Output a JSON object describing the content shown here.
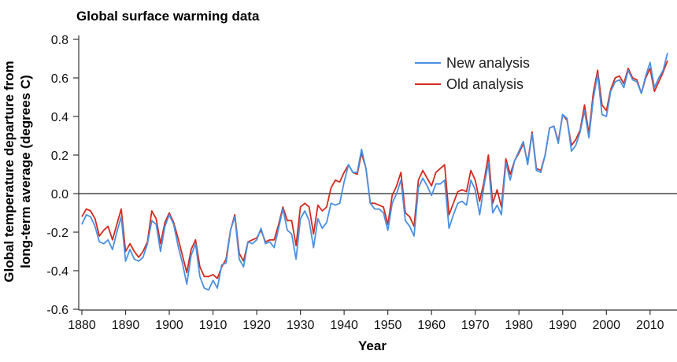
{
  "chart_data": {
    "type": "line",
    "title": "Global surface warming data",
    "xlabel": "Year",
    "ylabel": [
      "Global temperature departure from",
      "long-term average  (degrees C)"
    ],
    "xlim": [
      1880,
      2014
    ],
    "ylim": [
      -0.6,
      0.8
    ],
    "xticks": [
      1880,
      1890,
      1900,
      1910,
      1920,
      1930,
      1940,
      1950,
      1960,
      1970,
      1980,
      1990,
      2000,
      2010
    ],
    "yticks": [
      "0.8",
      "0.6",
      "0.4",
      "0.2",
      "0.0",
      "-0.2",
      "-0.4",
      "-0.6"
    ],
    "grid": false,
    "zero_line": true,
    "legend_position": "top-right",
    "x_start": 1880,
    "series": [
      {
        "name": "New analysis",
        "color": "#4a90e2",
        "values": [
          -0.16,
          -0.11,
          -0.12,
          -0.17,
          -0.25,
          -0.26,
          -0.24,
          -0.29,
          -0.2,
          -0.12,
          -0.35,
          -0.29,
          -0.34,
          -0.35,
          -0.33,
          -0.26,
          -0.14,
          -0.16,
          -0.3,
          -0.17,
          -0.11,
          -0.16,
          -0.27,
          -0.36,
          -0.47,
          -0.32,
          -0.26,
          -0.43,
          -0.49,
          -0.5,
          -0.45,
          -0.49,
          -0.37,
          -0.36,
          -0.19,
          -0.12,
          -0.34,
          -0.38,
          -0.25,
          -0.26,
          -0.24,
          -0.18,
          -0.26,
          -0.25,
          -0.28,
          -0.18,
          -0.08,
          -0.19,
          -0.21,
          -0.34,
          -0.13,
          -0.09,
          -0.14,
          -0.28,
          -0.13,
          -0.18,
          -0.15,
          -0.05,
          -0.06,
          -0.05,
          0.06,
          0.15,
          0.11,
          0.11,
          0.23,
          0.13,
          -0.05,
          -0.08,
          -0.08,
          -0.1,
          -0.19,
          -0.05,
          0.0,
          0.07,
          -0.14,
          -0.17,
          -0.22,
          0.03,
          0.08,
          0.04,
          -0.01,
          0.05,
          0.05,
          0.07,
          -0.18,
          -0.11,
          -0.05,
          -0.04,
          -0.06,
          0.07,
          0.02,
          -0.11,
          0.04,
          0.16,
          -0.1,
          -0.06,
          -0.11,
          0.16,
          0.07,
          0.17,
          0.22,
          0.27,
          0.15,
          0.31,
          0.12,
          0.11,
          0.2,
          0.34,
          0.35,
          0.26,
          0.41,
          0.39,
          0.22,
          0.25,
          0.32,
          0.43,
          0.29,
          0.49,
          0.62,
          0.41,
          0.4,
          0.53,
          0.58,
          0.59,
          0.55,
          0.64,
          0.59,
          0.58,
          0.52,
          0.61,
          0.68,
          0.55,
          0.6,
          0.64,
          0.73
        ]
      },
      {
        "name": "Old analysis",
        "color": "#d42a1e",
        "values": [
          -0.12,
          -0.08,
          -0.09,
          -0.13,
          -0.22,
          -0.19,
          -0.17,
          -0.24,
          -0.16,
          -0.08,
          -0.3,
          -0.26,
          -0.3,
          -0.33,
          -0.3,
          -0.25,
          -0.09,
          -0.13,
          -0.26,
          -0.15,
          -0.1,
          -0.15,
          -0.23,
          -0.32,
          -0.41,
          -0.29,
          -0.24,
          -0.38,
          -0.43,
          -0.43,
          -0.42,
          -0.44,
          -0.38,
          -0.34,
          -0.19,
          -0.11,
          -0.31,
          -0.35,
          -0.25,
          -0.24,
          -0.23,
          -0.19,
          -0.25,
          -0.24,
          -0.24,
          -0.16,
          -0.07,
          -0.14,
          -0.14,
          -0.27,
          -0.07,
          -0.05,
          -0.07,
          -0.21,
          -0.06,
          -0.09,
          -0.07,
          0.03,
          0.07,
          0.06,
          0.11,
          0.15,
          0.11,
          0.1,
          0.21,
          0.13,
          -0.05,
          -0.05,
          -0.06,
          -0.07,
          -0.16,
          -0.01,
          0.04,
          0.11,
          -0.1,
          -0.12,
          -0.17,
          0.07,
          0.12,
          0.08,
          0.04,
          0.11,
          0.13,
          0.15,
          -0.11,
          -0.05,
          0.01,
          0.02,
          0.01,
          0.12,
          0.07,
          -0.04,
          0.06,
          0.2,
          -0.05,
          0.02,
          -0.07,
          0.18,
          0.1,
          0.17,
          0.21,
          0.26,
          0.16,
          0.32,
          0.13,
          0.12,
          0.2,
          0.34,
          0.35,
          0.27,
          0.41,
          0.38,
          0.25,
          0.28,
          0.33,
          0.46,
          0.31,
          0.52,
          0.64,
          0.46,
          0.43,
          0.54,
          0.6,
          0.61,
          0.57,
          0.65,
          0.6,
          0.59,
          0.52,
          0.6,
          0.65,
          0.53,
          0.58,
          0.63,
          0.69
        ]
      }
    ]
  }
}
